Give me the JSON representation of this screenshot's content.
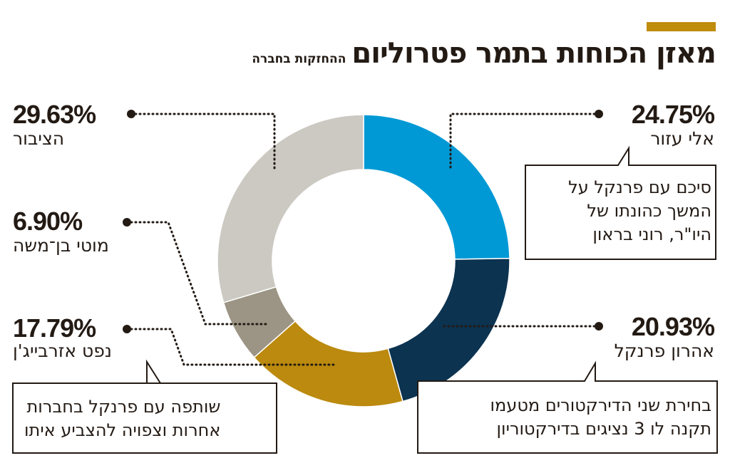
{
  "header": {
    "title": "מאזן הכוחות בתמר פטרוליום",
    "subtitle": "ההחזקות בחברה",
    "accent_color": "#bf8c0c"
  },
  "chart_data": {
    "type": "pie",
    "donut": true,
    "title": "מאזן הכוחות בתמר פטרוליום",
    "subtitle": "ההחזקות בחברה",
    "slices": [
      {
        "label": "אלי עזור",
        "value": 24.75,
        "display": "24.75%",
        "color": "#0099d5",
        "note": [
          "סיכם עם פרנקל על",
          "המשך כהונתו של",
          "היו\"ר, רוני בראון"
        ]
      },
      {
        "label": "אהרון פרנקל",
        "value": 20.93,
        "display": "20.93%",
        "color": "#0c3350",
        "note": [
          "בחירת שני הדירקטורים מטעמו",
          "תקנה לו 3 נציגים בדירקטוריון"
        ]
      },
      {
        "label": "נפט אזרבייג'ן",
        "value": 17.79,
        "display": "17.79%",
        "color": "#bb8a0e",
        "note": [
          "שותפה עם פרנקל בחברות",
          "אחרות וצפויה להצביע איתו"
        ]
      },
      {
        "label": "מוטי בן־משה",
        "value": 6.9,
        "display": "6.90%",
        "color": "#9c9484"
      },
      {
        "label": "הציבור",
        "value": 29.63,
        "display": "29.63%",
        "color": "#cbc9c2"
      }
    ]
  }
}
